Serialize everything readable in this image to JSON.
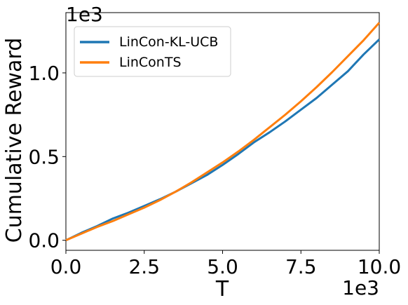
{
  "chart_data": {
    "type": "line",
    "xlabel": "T",
    "ylabel": "Cumulative Reward",
    "x_offset_label": "1e3",
    "y_offset_label": "1e3",
    "xlim": [
      0,
      10000
    ],
    "ylim": [
      -60,
      1360
    ],
    "x_ticks": [
      {
        "value": 0,
        "label": "0.0"
      },
      {
        "value": 2500,
        "label": "2.5"
      },
      {
        "value": 5000,
        "label": "5.0"
      },
      {
        "value": 7500,
        "label": "7.5"
      },
      {
        "value": 10000,
        "label": "10.0"
      }
    ],
    "y_ticks": [
      {
        "value": 0,
        "label": "0.0"
      },
      {
        "value": 500,
        "label": "0.5"
      },
      {
        "value": 1000,
        "label": "1.0"
      }
    ],
    "grid": false,
    "legend_position": "top-left",
    "series": [
      {
        "name": "LinCon-KL-UCB",
        "color": "#1f77b4",
        "x": [
          0,
          500,
          1000,
          1500,
          2000,
          2500,
          3000,
          3500,
          4000,
          4500,
          5000,
          5500,
          6000,
          6500,
          7000,
          7500,
          8000,
          8500,
          9000,
          9500,
          10000
        ],
        "y": [
          0,
          45,
          85,
          130,
          165,
          205,
          245,
          290,
          340,
          390,
          450,
          515,
          585,
          645,
          710,
          780,
          850,
          930,
          1010,
          1110,
          1200
        ]
      },
      {
        "name": "LinConTS",
        "color": "#ff7f0e",
        "x": [
          0,
          500,
          1000,
          1500,
          2000,
          2500,
          3000,
          3500,
          4000,
          4500,
          5000,
          5500,
          6000,
          6500,
          7000,
          7500,
          8000,
          8500,
          9000,
          9500,
          10000
        ],
        "y": [
          0,
          40,
          80,
          115,
          155,
          195,
          240,
          290,
          345,
          405,
          465,
          530,
          600,
          675,
          750,
          830,
          915,
          1005,
          1100,
          1195,
          1300
        ]
      }
    ]
  }
}
